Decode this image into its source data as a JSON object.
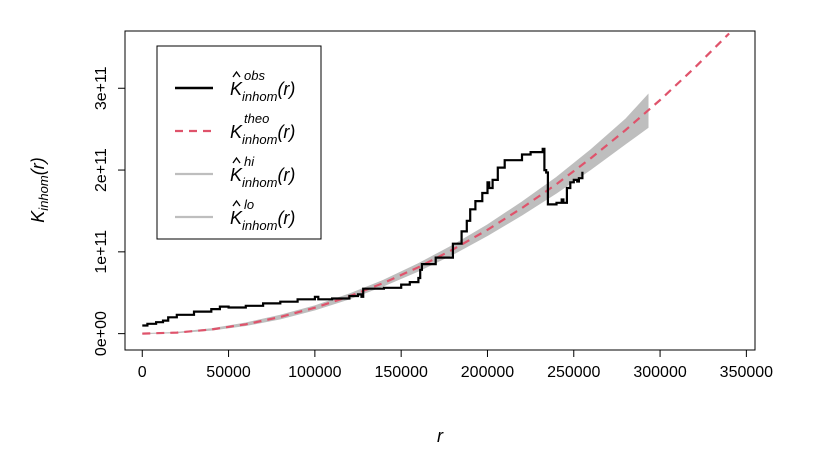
{
  "chart_data": {
    "type": "line",
    "title": "",
    "xlabel": "r",
    "ylabel": {
      "main": "K",
      "sub": "inhom",
      "arg": "(r)"
    },
    "xlim": [
      -10000,
      355000
    ],
    "ylim": [
      -20000000000,
      370000000000
    ],
    "x_ticks": [
      0,
      50000,
      100000,
      150000,
      200000,
      250000,
      300000,
      350000
    ],
    "x_tick_labels": [
      "0",
      "50000",
      "100000",
      "150000",
      "200000",
      "250000",
      "300000",
      "350000"
    ],
    "y_ticks": [
      0,
      100000000000,
      200000000000,
      300000000000
    ],
    "y_tick_labels": [
      "0e+00",
      "1e+11",
      "2e+11",
      "3e+11"
    ],
    "grid": false,
    "legend_position": "top-left",
    "colors": {
      "obs": "#000000",
      "theo": "#DF536B",
      "envelope": "#BEBEBE"
    },
    "legend": [
      {
        "key": "obs",
        "base": "K",
        "hat": true,
        "sup": "obs",
        "sub": "inhom",
        "arg": "(r)",
        "style": "solid",
        "color": "#000000"
      },
      {
        "key": "theo",
        "base": "K",
        "hat": false,
        "sup": "theo",
        "sub": "inhom",
        "arg": "(r)",
        "style": "dashed",
        "color": "#DF536B"
      },
      {
        "key": "hi",
        "base": "K",
        "hat": true,
        "sup": "hi",
        "sub": "inhom",
        "arg": "(r)",
        "style": "solid",
        "color": "#BEBEBE"
      },
      {
        "key": "lo",
        "base": "K",
        "hat": true,
        "sup": "lo",
        "sub": "inhom",
        "arg": "(r)",
        "style": "solid",
        "color": "#BEBEBE"
      }
    ],
    "series": [
      {
        "name": "obs",
        "x": [
          0,
          3000,
          8000,
          12000,
          15000,
          20000,
          30000,
          40000,
          45000,
          50000,
          60000,
          70000,
          80000,
          90000,
          100000,
          102000,
          110000,
          120000,
          125000,
          127000,
          128000,
          130000,
          140000,
          150000,
          155000,
          160000,
          161000,
          162000,
          170000,
          180000,
          185000,
          188000,
          190000,
          193000,
          197000,
          200000,
          201000,
          203000,
          206000,
          210000,
          220000,
          225000,
          232000,
          233000,
          234000,
          235000,
          238000,
          240000,
          243000,
          244000,
          246000,
          248000,
          250000,
          252000,
          253000,
          255000
        ],
        "y": [
          10000000000,
          12000000000,
          14000000000,
          16000000000,
          20000000000,
          23000000000,
          27000000000,
          30000000000,
          33000000000,
          32000000000,
          34000000000,
          37000000000,
          39000000000,
          42000000000,
          45000000000,
          42000000000,
          43000000000,
          46000000000,
          48000000000,
          45000000000,
          55000000000,
          55000000000,
          56000000000,
          60000000000,
          63000000000,
          68000000000,
          78000000000,
          85000000000,
          93000000000,
          110000000000,
          125000000000,
          138000000000,
          152000000000,
          162000000000,
          172000000000,
          185000000000,
          178000000000,
          188000000000,
          203000000000,
          212000000000,
          219000000000,
          222000000000,
          226000000000,
          200000000000,
          197000000000,
          158000000000,
          158000000000,
          160000000000,
          164000000000,
          160000000000,
          178000000000,
          185000000000,
          188000000000,
          186000000000,
          190000000000,
          198000000000
        ]
      },
      {
        "name": "theo",
        "x": [
          0,
          20000,
          40000,
          60000,
          80000,
          100000,
          120000,
          140000,
          160000,
          180000,
          200000,
          220000,
          240000,
          260000,
          280000,
          300000,
          320000,
          340000
        ],
        "y": [
          0,
          1270000000,
          5080000000,
          11430000000,
          20310000000,
          31740000000,
          45700000000,
          62210000000,
          81250000000,
          102840000000,
          126970000000,
          153630000000,
          182830000000,
          214570000000,
          248850000000,
          285670000000,
          325030000000,
          366930000000
        ]
      },
      {
        "name": "hi",
        "x": [
          0,
          20000,
          40000,
          60000,
          80000,
          100000,
          120000,
          140000,
          160000,
          180000,
          200000,
          220000,
          240000,
          260000,
          280000,
          293000
        ],
        "y": [
          0,
          1500000000,
          6000000000,
          13000000000,
          22500000000,
          34000000000,
          48500000000,
          65500000000,
          85500000000,
          108000000000,
          133000000000,
          161000000000,
          191000000000,
          225000000000,
          262000000000,
          292000000000
        ]
      },
      {
        "name": "lo",
        "x": [
          0,
          20000,
          40000,
          60000,
          80000,
          100000,
          120000,
          140000,
          160000,
          180000,
          200000,
          220000,
          240000,
          260000,
          280000,
          293000
        ],
        "y": [
          0,
          1000000000,
          4300000000,
          10000000000,
          18000000000,
          29000000000,
          42500000000,
          58500000000,
          76500000000,
          97000000000,
          120000000000,
          145000000000,
          172000000000,
          201000000000,
          232000000000,
          252000000000
        ]
      }
    ]
  }
}
